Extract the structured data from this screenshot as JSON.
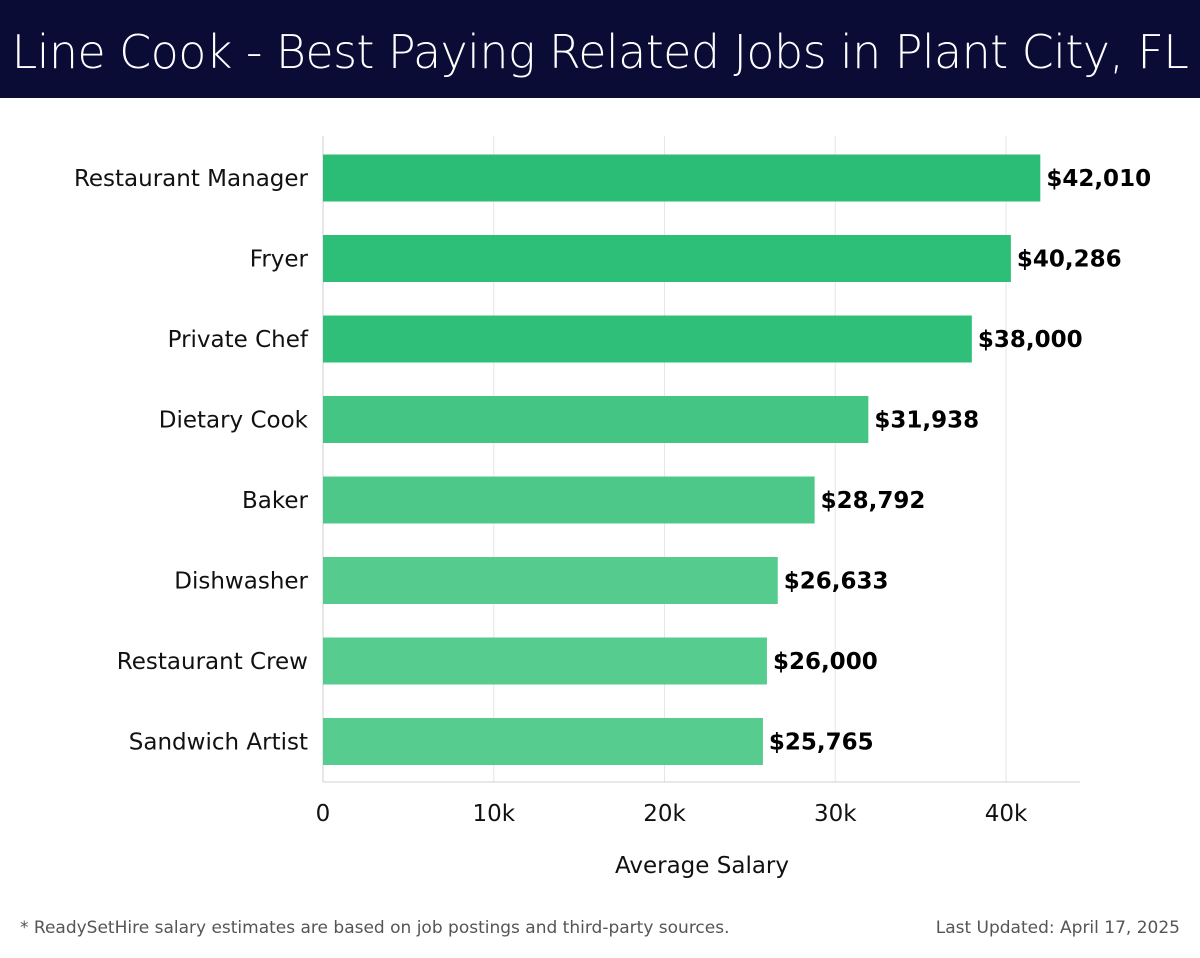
{
  "header": {
    "title": "Line Cook - Best Paying Related Jobs in Plant City, FL"
  },
  "chart_data": {
    "type": "bar",
    "orientation": "horizontal",
    "title": "Line Cook - Best Paying Related Jobs in Plant City, FL",
    "xlabel": "Average Salary",
    "ylabel": "",
    "xlim": [
      0,
      44000
    ],
    "x_ticks": [
      0,
      10000,
      20000,
      30000,
      40000
    ],
    "x_tick_labels": [
      "0",
      "10k",
      "20k",
      "30k",
      "40k"
    ],
    "grid": "vertical",
    "legend": "none",
    "categories": [
      "Restaurant Manager",
      "Fryer",
      "Private Chef",
      "Dietary Cook",
      "Baker",
      "Dishwasher",
      "Restaurant Crew",
      "Sandwich Artist"
    ],
    "values": [
      42010,
      40286,
      38000,
      31938,
      28792,
      26633,
      26000,
      25765
    ],
    "value_labels": [
      "$42,010",
      "$40,286",
      "$38,000",
      "$31,938",
      "$28,792",
      "$26,633",
      "$26,000",
      "$25,765"
    ],
    "bar_colors": [
      "#2bbd75",
      "#2dbe77",
      "#30bf78",
      "#45c584",
      "#4dc888",
      "#55cb8d",
      "#57cc8f",
      "#57cc8f"
    ]
  },
  "footer": {
    "note": "* ReadySetHire salary estimates are based on job postings and third-party sources.",
    "updated": "Last Updated: April 17, 2025"
  }
}
